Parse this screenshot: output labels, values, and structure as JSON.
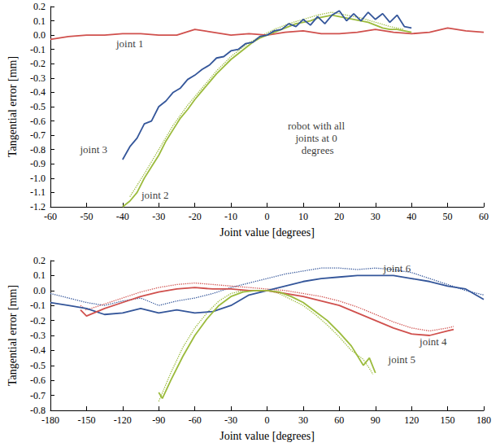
{
  "chart_data": [
    {
      "type": "line",
      "x_label": "Joint value [degrees]",
      "y_label": "Tangential error [mm]",
      "xlim": [
        -60,
        60
      ],
      "xticks": [
        -60,
        -50,
        -40,
        -30,
        -20,
        -10,
        0,
        10,
        20,
        30,
        40,
        50,
        60
      ],
      "ylim": [
        -1.2,
        0.2
      ],
      "yticks": [
        {
          "value": -1.2,
          "label": "-1.2"
        },
        {
          "value": -1.1,
          "label": "-1.1"
        },
        {
          "value": -1,
          "label": "-1.0"
        },
        {
          "value": -0.9,
          "label": "-0.9"
        },
        {
          "value": -0.8,
          "label": "-0.8"
        },
        {
          "value": -0.7,
          "label": "-0.7"
        },
        {
          "value": -0.6,
          "label": "-0.6"
        },
        {
          "value": -0.5,
          "label": "-0.5"
        },
        {
          "value": -0.4,
          "label": "-0.4"
        },
        {
          "value": -0.3,
          "label": "-0.3"
        },
        {
          "value": -0.2,
          "label": "-0.2"
        },
        {
          "value": -0.1,
          "label": "-0.1"
        },
        {
          "value": 0,
          "label": "0.0"
        },
        {
          "value": 0.1,
          "label": "0.1"
        },
        {
          "value": 0.2,
          "label": "0.2"
        }
      ],
      "grid": false,
      "series": [
        {
          "color": "#d0504d",
          "line_style": "solid",
          "x": [
            -60,
            -55,
            -50,
            -45,
            -40,
            -35,
            -30,
            -25,
            -20,
            -15,
            -10,
            -5,
            0,
            5,
            10,
            15,
            20,
            25,
            30,
            35,
            40,
            45,
            50,
            55,
            60
          ],
          "values": [
            -0.03,
            -0.01,
            0.0,
            0.0,
            0.01,
            0.01,
            0.0,
            0.0,
            0.04,
            0.02,
            0.0,
            0.01,
            0.0,
            0.02,
            0.03,
            0.01,
            0.01,
            0.02,
            0.04,
            0.02,
            0.01,
            0.02,
            0.05,
            0.03,
            0.02
          ]
        },
        {
          "color": "#9bbb3c",
          "line_style": "dotted",
          "x": [
            -38,
            -34,
            -30,
            -26,
            -22,
            -18,
            -14,
            -10,
            -6,
            -2,
            2,
            6,
            10,
            14,
            18,
            22,
            26,
            30,
            34,
            38
          ],
          "values": [
            -1.13,
            -0.97,
            -0.8,
            -0.63,
            -0.49,
            -0.37,
            -0.25,
            -0.15,
            -0.07,
            -0.01,
            0.04,
            0.08,
            0.11,
            0.14,
            0.16,
            0.14,
            0.12,
            0.09,
            0.06,
            0.04
          ]
        },
        {
          "color": "#9bbb3c",
          "line_style": "solid",
          "x": [
            -40,
            -38,
            -36,
            -34,
            -32,
            -30,
            -28,
            -26,
            -24,
            -22,
            -20,
            -18,
            -16,
            -14,
            -12,
            -10,
            -8,
            -6,
            -4,
            -2,
            0,
            2,
            4,
            6,
            8,
            10,
            12,
            14,
            16,
            18,
            20,
            22,
            24,
            26,
            28,
            30,
            32,
            34,
            36,
            38,
            40
          ],
          "values": [
            -1.2,
            -1.16,
            -1.1,
            -1.0,
            -0.92,
            -0.84,
            -0.74,
            -0.66,
            -0.58,
            -0.52,
            -0.45,
            -0.39,
            -0.33,
            -0.27,
            -0.22,
            -0.17,
            -0.13,
            -0.09,
            -0.05,
            -0.02,
            0.0,
            0.02,
            0.04,
            0.06,
            0.08,
            0.09,
            0.1,
            0.12,
            0.13,
            0.14,
            0.13,
            0.12,
            0.11,
            0.1,
            0.09,
            0.07,
            0.05,
            0.04,
            0.04,
            0.03,
            0.02
          ]
        },
        {
          "color": "#34569a",
          "line_style": "solid",
          "x": [
            -40,
            -38,
            -36,
            -34,
            -32,
            -30,
            -28,
            -26,
            -24,
            -22,
            -20,
            -18,
            -16,
            -14,
            -12,
            -10,
            -8,
            -6,
            -4,
            -2,
            0,
            2,
            4,
            6,
            8,
            10,
            12,
            14,
            16,
            18,
            20,
            22,
            24,
            26,
            28,
            30,
            32,
            34,
            36,
            38,
            40
          ],
          "values": [
            -0.87,
            -0.78,
            -0.72,
            -0.62,
            -0.6,
            -0.5,
            -0.46,
            -0.4,
            -0.37,
            -0.31,
            -0.28,
            -0.24,
            -0.21,
            -0.16,
            -0.15,
            -0.11,
            -0.1,
            -0.06,
            -0.05,
            -0.01,
            0.0,
            0.03,
            0.04,
            0.08,
            0.06,
            0.11,
            0.07,
            0.13,
            0.08,
            0.14,
            0.17,
            0.1,
            0.15,
            0.1,
            0.16,
            0.11,
            0.15,
            0.09,
            0.14,
            0.06,
            0.05
          ]
        }
      ],
      "annotations": [
        {
          "text": "joint 1",
          "x": -38,
          "y": -0.06
        },
        {
          "text": "joint 3",
          "x": -48,
          "y": -0.8
        },
        {
          "text": "joint 2",
          "x": -31,
          "y": -1.12
        },
        {
          "text": "robot with all joints at 0 degrees",
          "x": 14,
          "y": -0.72
        }
      ]
    },
    {
      "type": "line",
      "x_label": "Joint value [degrees]",
      "y_label": "Tangential error [mm]",
      "xlim": [
        -180,
        180
      ],
      "xticks": [
        -180,
        -150,
        -120,
        -90,
        -60,
        -30,
        0,
        30,
        60,
        90,
        120,
        150,
        180
      ],
      "ylim": [
        -0.8,
        0.2
      ],
      "yticks": [
        {
          "value": -0.8,
          "label": "-0.8"
        },
        {
          "value": -0.7,
          "label": "-0.7"
        },
        {
          "value": -0.6,
          "label": "-0.6"
        },
        {
          "value": -0.5,
          "label": "-0.5"
        },
        {
          "value": -0.4,
          "label": "-0.4"
        },
        {
          "value": -0.3,
          "label": "-0.3"
        },
        {
          "value": -0.2,
          "label": "-0.2"
        },
        {
          "value": -0.1,
          "label": "-0.1"
        },
        {
          "value": 0,
          "label": "0.0"
        },
        {
          "value": 0.1,
          "label": "0.1"
        },
        {
          "value": 0.2,
          "label": "0.2"
        }
      ],
      "grid": false,
      "series": [
        {
          "color": "#34569a",
          "line_style": "dotted",
          "x": [
            -180,
            -165,
            -150,
            -135,
            -120,
            -105,
            -90,
            -75,
            -60,
            -45,
            -30,
            -15,
            0,
            15,
            30,
            45,
            60,
            75,
            90,
            105,
            120,
            135,
            150,
            165,
            180
          ],
          "values": [
            -0.02,
            -0.05,
            -0.08,
            -0.1,
            -0.07,
            -0.05,
            -0.1,
            -0.07,
            -0.05,
            -0.02,
            0.02,
            0.05,
            0.08,
            0.11,
            0.13,
            0.15,
            0.15,
            0.14,
            0.15,
            0.14,
            0.12,
            0.08,
            0.04,
            0.0,
            -0.03
          ]
        },
        {
          "color": "#34569a",
          "line_style": "solid",
          "x": [
            -180,
            -165,
            -150,
            -135,
            -120,
            -105,
            -90,
            -75,
            -60,
            -45,
            -30,
            -15,
            0,
            15,
            30,
            45,
            60,
            75,
            90,
            105,
            120,
            135,
            150,
            165,
            180
          ],
          "values": [
            -0.08,
            -0.1,
            -0.12,
            -0.16,
            -0.15,
            -0.12,
            -0.15,
            -0.13,
            -0.15,
            -0.14,
            -0.1,
            -0.03,
            0.0,
            0.03,
            0.06,
            0.08,
            0.09,
            0.1,
            0.1,
            0.1,
            0.08,
            0.06,
            0.03,
            0.01,
            -0.06
          ]
        },
        {
          "color": "#d0504d",
          "line_style": "dotted",
          "x": [
            -155,
            -150,
            -135,
            -120,
            -105,
            -90,
            -75,
            -60,
            -45,
            -30,
            -15,
            0,
            15,
            30,
            45,
            60,
            75,
            90,
            105,
            120,
            135,
            150,
            155
          ],
          "values": [
            -0.1,
            -0.13,
            -0.09,
            -0.05,
            -0.01,
            0.02,
            0.04,
            0.05,
            0.04,
            0.03,
            0.02,
            0.01,
            0.0,
            -0.02,
            -0.04,
            -0.07,
            -0.11,
            -0.16,
            -0.21,
            -0.25,
            -0.27,
            -0.25,
            -0.24
          ]
        },
        {
          "color": "#d0504d",
          "line_style": "solid",
          "x": [
            -155,
            -150,
            -135,
            -120,
            -105,
            -90,
            -75,
            -60,
            -45,
            -30,
            -15,
            0,
            15,
            30,
            45,
            60,
            75,
            90,
            105,
            120,
            135,
            150,
            155
          ],
          "values": [
            -0.13,
            -0.17,
            -0.12,
            -0.08,
            -0.04,
            -0.01,
            0.01,
            0.02,
            0.01,
            0.01,
            0.0,
            0.0,
            -0.02,
            -0.04,
            -0.07,
            -0.1,
            -0.15,
            -0.2,
            -0.25,
            -0.29,
            -0.3,
            -0.27,
            -0.26
          ]
        },
        {
          "color": "#9bbb3c",
          "line_style": "dotted",
          "x": [
            -90,
            -80,
            -70,
            -60,
            -50,
            -40,
            -30,
            -20,
            -10,
            0,
            10,
            20,
            30,
            40,
            50,
            60,
            70,
            80,
            85,
            88
          ],
          "values": [
            -0.74,
            -0.55,
            -0.38,
            -0.25,
            -0.15,
            -0.07,
            -0.02,
            0.0,
            0.0,
            0.0,
            -0.02,
            -0.06,
            -0.1,
            -0.16,
            -0.23,
            -0.31,
            -0.4,
            -0.46,
            -0.52,
            -0.56
          ]
        },
        {
          "color": "#9bbb3c",
          "line_style": "solid",
          "x": [
            -90,
            -87,
            -80,
            -70,
            -60,
            -50,
            -40,
            -30,
            -20,
            -10,
            0,
            10,
            20,
            30,
            40,
            50,
            60,
            70,
            80,
            85,
            90
          ],
          "values": [
            -0.68,
            -0.72,
            -0.6,
            -0.44,
            -0.3,
            -0.19,
            -0.1,
            -0.04,
            -0.01,
            0.0,
            0.0,
            -0.01,
            -0.04,
            -0.08,
            -0.14,
            -0.2,
            -0.28,
            -0.37,
            -0.5,
            -0.45,
            -0.55
          ]
        }
      ],
      "annotations": [
        {
          "text": "joint 6",
          "x": 108,
          "y": 0.15
        },
        {
          "text": "joint 4",
          "x": 138,
          "y": -0.34
        },
        {
          "text": "joint 5",
          "x": 112,
          "y": -0.46
        }
      ]
    }
  ]
}
